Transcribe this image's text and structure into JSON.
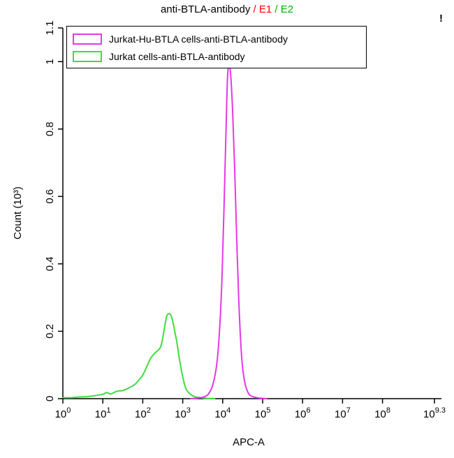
{
  "title": {
    "part1": "anti-BTLA-antibody ",
    "part2": "/ E1 ",
    "part3": "/ E2",
    "color1": "#000000",
    "color2": "#ff0000",
    "color3": "#00b000"
  },
  "overflow_marker": "!",
  "legend": {
    "items": [
      {
        "label": "Jurkat-Hu-BTLA cells-anti-BTLA-antibody",
        "color": "#e538e5"
      },
      {
        "label": "Jurkat cells-anti-BTLA-antibody",
        "color": "#3fdc3f"
      }
    ]
  },
  "chart_data": {
    "type": "line",
    "subtype": "flow-cytometry-histogram",
    "title": "anti-BTLA-antibody / E1 / E2",
    "xlabel": "APC-A",
    "ylabel": "Count (10³)",
    "x_scale": "log10",
    "x_range_log10": [
      0,
      9.3
    ],
    "x_tick_exponents": [
      "0",
      "1",
      "2",
      "3",
      "4",
      "5",
      "6",
      "7",
      "8",
      "9.3"
    ],
    "y_ticks": [
      0,
      0.2,
      0.4,
      0.6,
      0.8,
      1,
      1.1
    ],
    "y_tick_labels": [
      "0",
      "0.2",
      "0.4",
      "0.6",
      "0.8",
      "1",
      "1.1"
    ],
    "ylim": [
      0,
      1.1
    ],
    "grid": false,
    "legend_position": "top-left",
    "series": [
      {
        "id": "jurkat-cells-curve",
        "name": "Jurkat cells-anti-BTLA-antibody",
        "color": "#3fdc3f",
        "peak_x_approx": 400,
        "peak_y_approx": 0.25,
        "points": [
          [
            0.0,
            0.003
          ],
          [
            0.2,
            0.003
          ],
          [
            0.4,
            0.005
          ],
          [
            0.6,
            0.006
          ],
          [
            0.8,
            0.009
          ],
          [
            1.0,
            0.013
          ],
          [
            1.1,
            0.018
          ],
          [
            1.2,
            0.014
          ],
          [
            1.35,
            0.022
          ],
          [
            1.5,
            0.024
          ],
          [
            1.65,
            0.032
          ],
          [
            1.8,
            0.042
          ],
          [
            1.9,
            0.055
          ],
          [
            2.0,
            0.07
          ],
          [
            2.1,
            0.095
          ],
          [
            2.2,
            0.12
          ],
          [
            2.3,
            0.135
          ],
          [
            2.4,
            0.145
          ],
          [
            2.45,
            0.155
          ],
          [
            2.5,
            0.18
          ],
          [
            2.55,
            0.215
          ],
          [
            2.6,
            0.245
          ],
          [
            2.65,
            0.252
          ],
          [
            2.7,
            0.248
          ],
          [
            2.75,
            0.23
          ],
          [
            2.8,
            0.2
          ],
          [
            2.85,
            0.17
          ],
          [
            2.9,
            0.13
          ],
          [
            2.95,
            0.095
          ],
          [
            3.0,
            0.065
          ],
          [
            3.05,
            0.04
          ],
          [
            3.1,
            0.025
          ],
          [
            3.2,
            0.012
          ],
          [
            3.3,
            0.006
          ],
          [
            3.45,
            0.003
          ],
          [
            3.6,
            0.001
          ],
          [
            3.8,
            0.0
          ]
        ]
      },
      {
        "id": "jurkat-hu-btla-curve",
        "name": "Jurkat-Hu-BTLA cells-anti-BTLA-antibody",
        "color": "#e538e5",
        "peak_x_approx": 14000,
        "peak_y_approx": 0.99,
        "points": [
          [
            3.2,
            0.0
          ],
          [
            3.4,
            0.002
          ],
          [
            3.55,
            0.006
          ],
          [
            3.65,
            0.015
          ],
          [
            3.75,
            0.04
          ],
          [
            3.85,
            0.1
          ],
          [
            3.92,
            0.2
          ],
          [
            3.98,
            0.35
          ],
          [
            4.03,
            0.55
          ],
          [
            4.08,
            0.78
          ],
          [
            4.12,
            0.95
          ],
          [
            4.16,
            0.99
          ],
          [
            4.2,
            0.96
          ],
          [
            4.25,
            0.85
          ],
          [
            4.3,
            0.68
          ],
          [
            4.35,
            0.48
          ],
          [
            4.4,
            0.3
          ],
          [
            4.45,
            0.17
          ],
          [
            4.5,
            0.09
          ],
          [
            4.57,
            0.04
          ],
          [
            4.65,
            0.015
          ],
          [
            4.75,
            0.006
          ],
          [
            4.9,
            0.002
          ],
          [
            5.1,
            0.0
          ]
        ]
      }
    ]
  }
}
